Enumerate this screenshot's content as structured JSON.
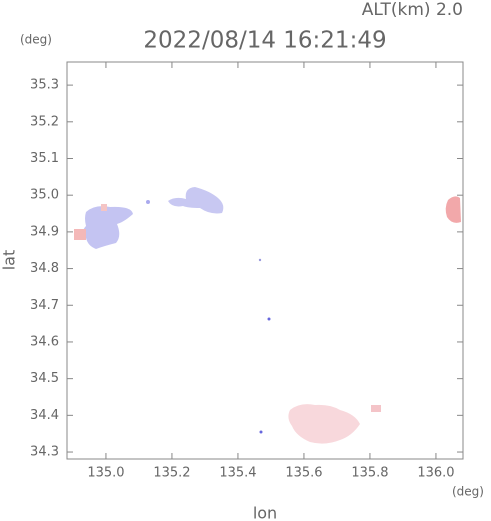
{
  "chart_data": {
    "type": "map",
    "title": "2022/08/14 16:21:49",
    "subtitle": "ALT(km) 2.0",
    "x_label": "lon",
    "y_label": "lat",
    "x_unit": "(deg)",
    "y_unit": "(deg)",
    "xlim": [
      134.882,
      136.082
    ],
    "ylim": [
      34.281,
      35.363
    ],
    "xticks": [
      {
        "value": 135.0,
        "label": "135.0"
      },
      135.2,
      135.4,
      135.6,
      135.8,
      {
        "value": 136.0,
        "label": "136.0"
      }
    ],
    "yticks": [
      34.3,
      34.4,
      34.5,
      34.6,
      34.7,
      34.8,
      34.9,
      {
        "value": 35.0,
        "label": "35.0"
      },
      35.1,
      35.2,
      35.3
    ]
  }
}
